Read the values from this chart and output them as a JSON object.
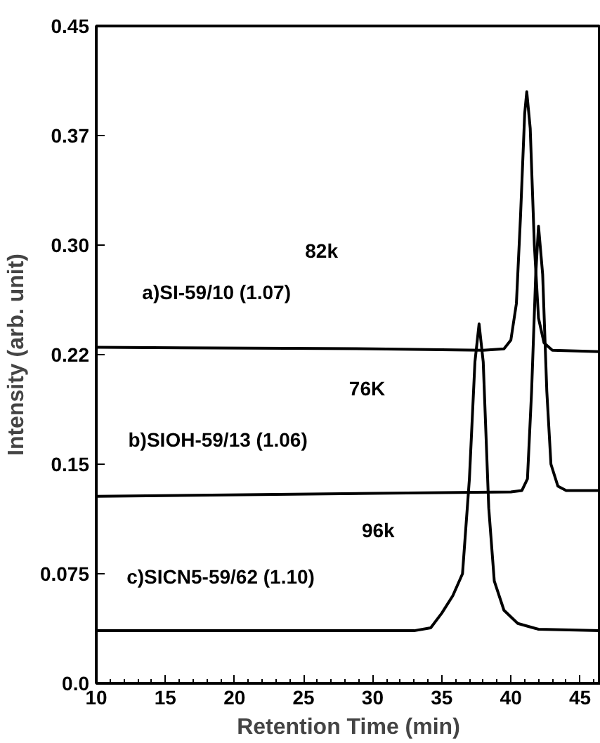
{
  "chart_data": {
    "type": "line",
    "xlabel": "Retention Time (min)",
    "ylabel": "Intensity (arb. unit)",
    "xlim": [
      10,
      46.5
    ],
    "xticks": [
      10,
      15,
      20,
      25,
      30,
      35,
      40,
      45
    ],
    "ylim": [
      0,
      0.45
    ],
    "yticks": [
      {
        "value": 0,
        "label": "0.0"
      },
      0.075,
      0.15,
      {
        "value": 0.225,
        "label": "0.22"
      },
      {
        "value": 0.3,
        "label": "0.30"
      },
      {
        "value": 0.375,
        "label": "0.37"
      },
      0.45
    ],
    "series": [
      {
        "color": "#000000",
        "x": [
          10,
          30,
          38,
          39.5,
          40,
          40.4,
          40.7,
          41.0,
          41.15,
          41.4,
          41.7,
          42.0,
          42.4,
          43,
          46.5
        ],
        "values": [
          0.23,
          0.229,
          0.228,
          0.229,
          0.235,
          0.26,
          0.32,
          0.39,
          0.405,
          0.38,
          0.3,
          0.25,
          0.233,
          0.228,
          0.227
        ]
      },
      {
        "color": "#000000",
        "x": [
          10,
          30,
          40,
          40.8,
          41.2,
          41.5,
          41.8,
          42.0,
          42.3,
          42.6,
          42.9,
          43.4,
          44,
          46.5
        ],
        "values": [
          0.128,
          0.13,
          0.131,
          0.132,
          0.14,
          0.2,
          0.28,
          0.313,
          0.28,
          0.2,
          0.15,
          0.135,
          0.132,
          0.132
        ]
      },
      {
        "color": "#000000",
        "x": [
          10,
          33,
          34.2,
          35,
          35.8,
          36.5,
          37,
          37.4,
          37.7,
          38,
          38.4,
          38.8,
          39.5,
          40.5,
          42,
          46.5
        ],
        "values": [
          0.036,
          0.036,
          0.038,
          0.048,
          0.06,
          0.075,
          0.14,
          0.22,
          0.246,
          0.22,
          0.12,
          0.07,
          0.05,
          0.041,
          0.037,
          0.036
        ]
      }
    ],
    "annotations": [
      "82k",
      "a)SI-59/10 (1.07)",
      "76K",
      "b)SIOH-59/13 (1.06)",
      "96k",
      "c)SICN5-59/62 (1.10)"
    ],
    "grid": false,
    "line_style": "solid"
  }
}
